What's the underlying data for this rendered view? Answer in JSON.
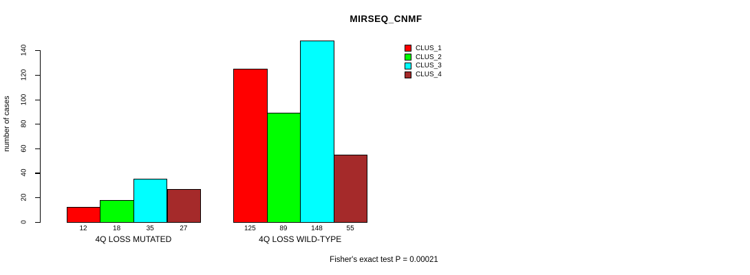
{
  "chart_data": {
    "type": "bar",
    "title": "MIRSEQ_CNMF",
    "ylabel": "number of cases",
    "xlabel": "",
    "footer": "Fisher's exact test P = 0.00021",
    "categories": [
      "4Q LOSS MUTATED",
      "4Q LOSS WILD-TYPE"
    ],
    "series": [
      {
        "name": "CLUS_1",
        "color": "#FF0000",
        "values": [
          12,
          125
        ]
      },
      {
        "name": "CLUS_2",
        "color": "#00FF00",
        "values": [
          18,
          89
        ]
      },
      {
        "name": "CLUS_3",
        "color": "#00FFFF",
        "values": [
          35,
          148
        ]
      },
      {
        "name": "CLUS_4",
        "color": "#A52A2A",
        "values": [
          27,
          55
        ]
      }
    ],
    "bar_value_labels": [
      [
        "12",
        "18",
        "35",
        "27"
      ],
      [
        "125",
        "89",
        "148",
        "55"
      ]
    ],
    "yticks": [
      0,
      20,
      40,
      60,
      80,
      100,
      120,
      140
    ],
    "ylim": [
      0,
      140
    ],
    "grid": false,
    "legend_position": "top-right-of-plot",
    "bar_border_color": "#000000",
    "axis_color": "#000000"
  }
}
